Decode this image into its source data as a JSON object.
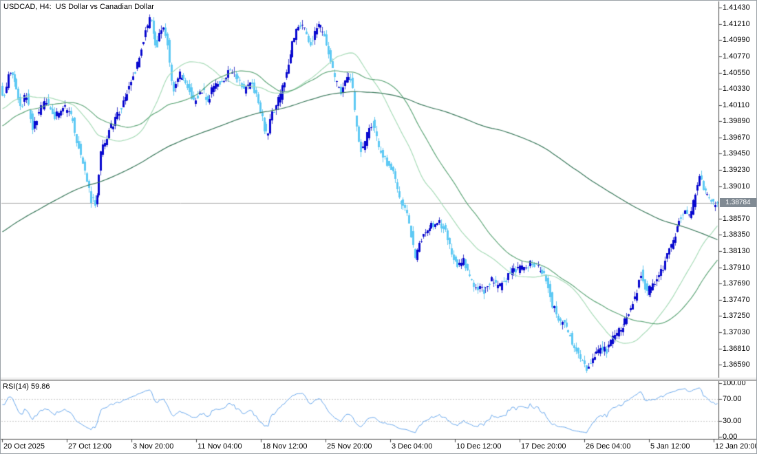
{
  "window": {
    "title": "USDCAD, H4:  US Dollar vs Canadian Dollar"
  },
  "current_price": {
    "text": "1.38784",
    "value": 1.38784,
    "tag_bg": "#808a93",
    "line_color": "#a8a8a8"
  },
  "price_axis": {
    "labels": [
      "1.41430",
      "1.41210",
      "1.40990",
      "1.40770",
      "1.40550",
      "1.40330",
      "1.40110",
      "1.39890",
      "1.39670",
      "1.39450",
      "1.39230",
      "1.39010",
      "1.38570",
      "1.38350",
      "1.38130",
      "1.37910",
      "1.37690",
      "1.37470",
      "1.37250",
      "1.37030",
      "1.36810",
      "1.36590"
    ]
  },
  "time_axis": {
    "labels": [
      "20 Oct 2025",
      "27 Oct 12:00",
      "3 Nov 20:00",
      "11 Nov 04:00",
      "18 Nov 12:00",
      "25 Nov 20:00",
      "3 Dec 04:00",
      "10 Dec 12:00",
      "17 Dec 20:00",
      "26 Dec 04:00",
      "5 Jan 12:00",
      "12 Jan 20:00"
    ]
  },
  "indicator": {
    "label": "RSI(14) 59.86",
    "name": "RSI",
    "period": 14,
    "value": 59.86,
    "line_color": "#6aa9ee",
    "level_line_color": "#c9c9c9",
    "scale_labels": [
      {
        "text": "100.00",
        "value": 100
      },
      {
        "text": "70.00",
        "value": 70
      },
      {
        "text": "30.00",
        "value": 30
      },
      {
        "text": "0.00",
        "value": 0
      }
    ]
  },
  "chart_data": {
    "type": "candlestick",
    "symbol": "USDCAD",
    "timeframe": "H4",
    "title": "US Dollar vs Canadian Dollar",
    "ylim": [
      1.36415,
      1.41515
    ],
    "x_tick_labels": [
      "20 Oct 2025",
      "27 Oct 12:00",
      "3 Nov 20:00",
      "11 Nov 04:00",
      "18 Nov 12:00",
      "25 Nov 20:00",
      "3 Dec 04:00",
      "10 Dec 12:00",
      "17 Dec 20:00",
      "26 Dec 04:00",
      "5 Jan 12:00",
      "12 Jan 20:00"
    ],
    "bars": 356,
    "last_close": 1.38784,
    "body_noise": 0.0011,
    "wick_noise": 0.0007,
    "candle_colors": {
      "bull": "#0808cf",
      "bear": "#5ec9f4",
      "bull_wick": "#4444cc",
      "bear_wick": "#66c9f0"
    },
    "pre_history_keypoints": [
      [
        -600,
        1.366
      ],
      [
        -480,
        1.372
      ],
      [
        -360,
        1.3785
      ],
      [
        -240,
        1.385
      ],
      [
        -150,
        1.393
      ],
      [
        -60,
        1.3995
      ]
    ],
    "price_path_keypoints": [
      [
        0,
        1.4035
      ],
      [
        8,
        1.4022
      ],
      [
        14,
        1.4058
      ],
      [
        22,
        1.404
      ],
      [
        30,
        1.4006
      ],
      [
        38,
        1.4026
      ],
      [
        48,
        1.3982
      ],
      [
        58,
        1.4004
      ],
      [
        68,
        1.4016
      ],
      [
        80,
        1.3996
      ],
      [
        92,
        1.4008
      ],
      [
        104,
        1.3998
      ],
      [
        112,
        1.3965
      ],
      [
        122,
        1.393
      ],
      [
        132,
        1.3884
      ],
      [
        140,
        1.3876
      ],
      [
        147,
        1.3948
      ],
      [
        156,
        1.3968
      ],
      [
        166,
        1.399
      ],
      [
        178,
        1.401
      ],
      [
        190,
        1.404
      ],
      [
        200,
        1.4066
      ],
      [
        210,
        1.4105
      ],
      [
        218,
        1.4132
      ],
      [
        224,
        1.411
      ],
      [
        228,
        1.4088
      ],
      [
        236,
        1.4118
      ],
      [
        244,
        1.4094
      ],
      [
        252,
        1.403
      ],
      [
        262,
        1.4052
      ],
      [
        272,
        1.404
      ],
      [
        282,
        1.4016
      ],
      [
        292,
        1.4032
      ],
      [
        302,
        1.4018
      ],
      [
        312,
        1.4036
      ],
      [
        322,
        1.4044
      ],
      [
        334,
        1.4058
      ],
      [
        346,
        1.4048
      ],
      [
        356,
        1.403
      ],
      [
        366,
        1.4046
      ],
      [
        376,
        1.401
      ],
      [
        388,
        1.3968
      ],
      [
        398,
        1.4004
      ],
      [
        408,
        1.4024
      ],
      [
        418,
        1.406
      ],
      [
        428,
        1.4104
      ],
      [
        436,
        1.4124
      ],
      [
        444,
        1.411
      ],
      [
        452,
        1.4096
      ],
      [
        462,
        1.4118
      ],
      [
        470,
        1.4112
      ],
      [
        478,
        1.4084
      ],
      [
        488,
        1.4042
      ],
      [
        496,
        1.4028
      ],
      [
        504,
        1.4048
      ],
      [
        512,
        1.4044
      ],
      [
        518,
        1.3982
      ],
      [
        526,
        1.3944
      ],
      [
        534,
        1.3972
      ],
      [
        542,
        1.399
      ],
      [
        552,
        1.3948
      ],
      [
        562,
        1.3936
      ],
      [
        572,
        1.3916
      ],
      [
        580,
        1.3886
      ],
      [
        588,
        1.3872
      ],
      [
        596,
        1.3848
      ],
      [
        604,
        1.38
      ],
      [
        612,
        1.3828
      ],
      [
        622,
        1.3846
      ],
      [
        634,
        1.3852
      ],
      [
        644,
        1.3848
      ],
      [
        654,
        1.382
      ],
      [
        664,
        1.3794
      ],
      [
        674,
        1.38
      ],
      [
        684,
        1.3772
      ],
      [
        694,
        1.3764
      ],
      [
        704,
        1.376
      ],
      [
        714,
        1.3774
      ],
      [
        724,
        1.3762
      ],
      [
        734,
        1.3772
      ],
      [
        744,
        1.379
      ],
      [
        754,
        1.3788
      ],
      [
        764,
        1.3794
      ],
      [
        774,
        1.3796
      ],
      [
        784,
        1.379
      ],
      [
        794,
        1.3776
      ],
      [
        802,
        1.3744
      ],
      [
        812,
        1.3716
      ],
      [
        822,
        1.3714
      ],
      [
        832,
        1.369
      ],
      [
        842,
        1.3672
      ],
      [
        852,
        1.3652
      ],
      [
        862,
        1.367
      ],
      [
        872,
        1.368
      ],
      [
        882,
        1.3678
      ],
      [
        892,
        1.3698
      ],
      [
        902,
        1.3706
      ],
      [
        912,
        1.3726
      ],
      [
        922,
        1.3746
      ],
      [
        932,
        1.3784
      ],
      [
        940,
        1.3756
      ],
      [
        948,
        1.3768
      ],
      [
        958,
        1.3778
      ],
      [
        968,
        1.3802
      ],
      [
        978,
        1.3824
      ],
      [
        986,
        1.3852
      ],
      [
        996,
        1.3872
      ],
      [
        1004,
        1.386
      ],
      [
        1012,
        1.3896
      ],
      [
        1018,
        1.3916
      ],
      [
        1024,
        1.3894
      ],
      [
        1030,
        1.3886
      ],
      [
        1036,
        1.3876
      ],
      [
        1043,
        1.38784
      ]
    ],
    "moving_averages": [
      {
        "name": "fast",
        "window": 34,
        "color": "#a8dcb8"
      },
      {
        "name": "medium",
        "window": 56,
        "color": "#63a97c"
      },
      {
        "name": "slow",
        "window": 200,
        "color": "#3c7a5d"
      }
    ],
    "rsi": {
      "period": 14,
      "levels": [
        70,
        30
      ],
      "range": [
        0,
        100
      ],
      "last_value": 59.86,
      "legend_position": "top-left"
    },
    "grid": "off",
    "background": "#ffffff"
  }
}
